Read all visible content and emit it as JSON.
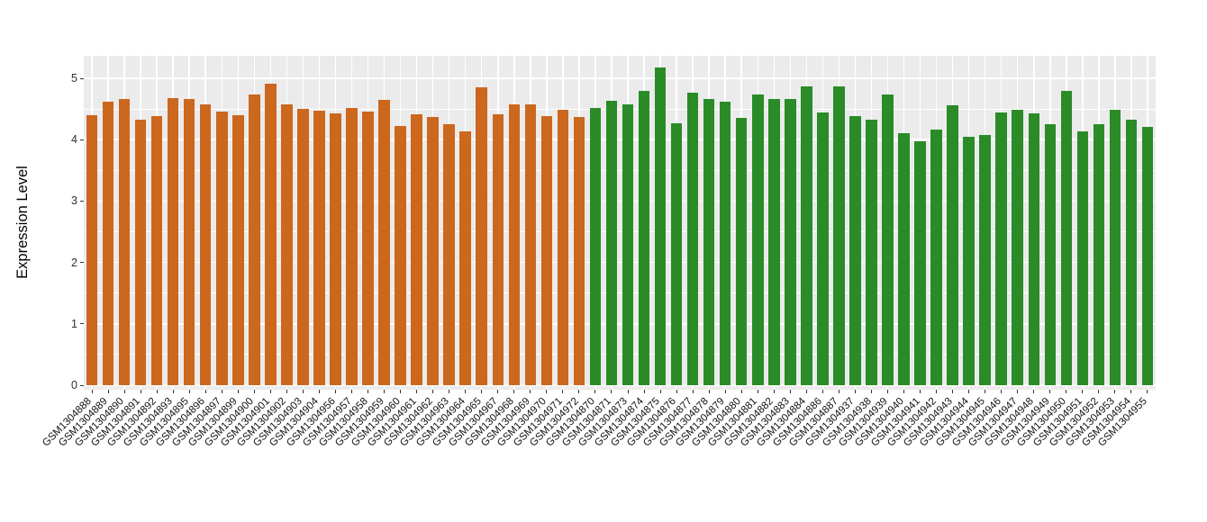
{
  "chart_data": {
    "type": "bar",
    "title": "",
    "xlabel": "",
    "ylabel": "Expression Level",
    "ylim": [
      0,
      5.37
    ],
    "yticks": [
      0,
      1,
      2,
      3,
      4,
      5
    ],
    "grid": "on",
    "legend": "none",
    "panel_bg": "#EBEBEB",
    "grid_color": "#FFFFFF",
    "tick_color": "#333333",
    "categories": [
      "GSM1304888",
      "GSM1304889",
      "GSM1304890",
      "GSM1304891",
      "GSM1304892",
      "GSM1304893",
      "GSM1304895",
      "GSM1304896",
      "GSM1304897",
      "GSM1304899",
      "GSM1304900",
      "GSM1304901",
      "GSM1304902",
      "GSM1304903",
      "GSM1304904",
      "GSM1304956",
      "GSM1304957",
      "GSM1304958",
      "GSM1304959",
      "GSM1304960",
      "GSM1304961",
      "GSM1304962",
      "GSM1304963",
      "GSM1304964",
      "GSM1304965",
      "GSM1304967",
      "GSM1304968",
      "GSM1304969",
      "GSM1304970",
      "GSM1304971",
      "GSM1304972",
      "GSM1304870",
      "GSM1304871",
      "GSM1304873",
      "GSM1304874",
      "GSM1304875",
      "GSM1304876",
      "GSM1304877",
      "GSM1304878",
      "GSM1304879",
      "GSM1304880",
      "GSM1304881",
      "GSM1304882",
      "GSM1304883",
      "GSM1304884",
      "GSM1304886",
      "GSM1304887",
      "GSM1304937",
      "GSM1304938",
      "GSM1304939",
      "GSM1304940",
      "GSM1304941",
      "GSM1304942",
      "GSM1304943",
      "GSM1304944",
      "GSM1304945",
      "GSM1304946",
      "GSM1304947",
      "GSM1304948",
      "GSM1304949",
      "GSM1304950",
      "GSM1304951",
      "GSM1304952",
      "GSM1304953",
      "GSM1304954",
      "GSM1304955"
    ],
    "values": [
      4.4,
      4.62,
      4.66,
      4.33,
      4.38,
      4.68,
      4.67,
      4.57,
      4.46,
      4.4,
      4.73,
      4.91,
      4.58,
      4.5,
      4.47,
      4.43,
      4.51,
      4.46,
      4.65,
      4.22,
      4.41,
      4.37,
      4.25,
      4.14,
      4.86,
      4.41,
      4.58,
      4.58,
      4.39,
      4.49,
      4.37,
      4.51,
      4.64,
      4.58,
      4.8,
      5.18,
      4.26,
      4.76,
      4.66,
      4.62,
      4.36,
      4.74,
      4.66,
      4.66,
      4.87,
      4.45,
      4.87,
      4.38,
      4.32,
      4.74,
      4.11,
      3.98,
      4.16,
      4.56,
      4.04,
      4.07,
      4.45,
      4.48,
      4.43,
      4.25,
      4.8,
      4.13,
      4.25,
      4.48,
      4.32,
      4.21
    ],
    "groups": [
      {
        "color": "#CC671E",
        "start": 0,
        "count": 31
      },
      {
        "color": "#2A8B27",
        "start": 31,
        "count": 35
      }
    ]
  }
}
